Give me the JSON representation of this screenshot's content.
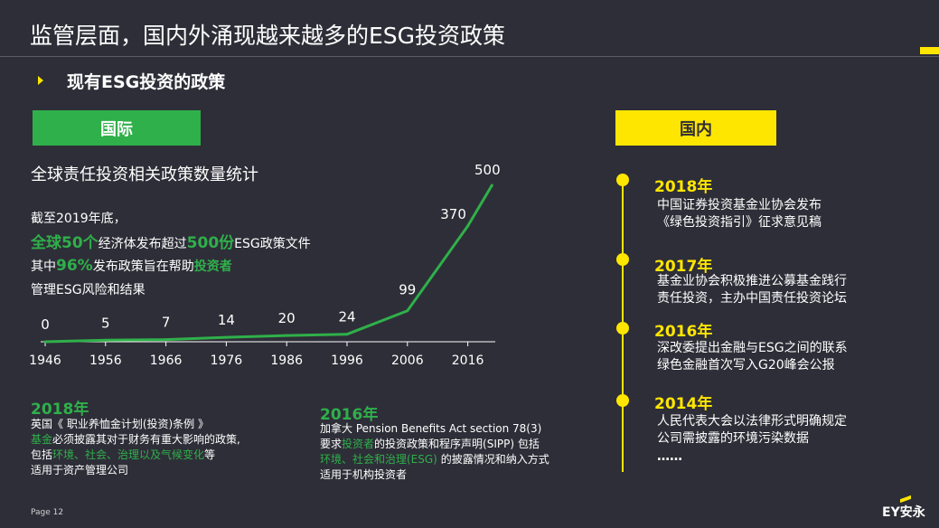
{
  "title": "监管层面，国内外涌现越来越多的ESG投资政策",
  "subtitle": "现有ESG投资的政策",
  "international": {
    "pill": "国际",
    "chart_title": "全球责任投资相关政策数量统计",
    "stats": {
      "l1": "截至2019年底，",
      "l2a": "全球50个",
      "l2b": "经济体发布超过",
      "l2c": "500份",
      "l2d": "ESG政策文件",
      "l3a": "其中",
      "l3b": "96%",
      "l3c": "发布政策旨在帮助",
      "l3d": "投资者",
      "l4": "管理ESG风险和结果"
    }
  },
  "domestic": {
    "pill": "国内",
    "timeline": [
      {
        "year": "2018年",
        "l1": "中国证券投资基金业协会发布",
        "l2": "《绿色投资指引》征求意见稿"
      },
      {
        "year": "2017年",
        "l1": "基金业协会积极推进公募基金践行",
        "l2": "责任投资，主办中国责任投资论坛"
      },
      {
        "year": "2016年",
        "l1": "深改委提出金融与ESG之间的联系",
        "l2": "绿色金融首次写入G20峰会公报"
      },
      {
        "year": "2014年",
        "l1": "人民代表大会以法律形式明确规定",
        "l2": "公司需披露的环境污染数据"
      }
    ],
    "ellipsis": "……"
  },
  "annotations": {
    "uk": {
      "year": "2018年",
      "l1": "英国《 职业养恤金计划(投资)条例 》",
      "l2a": "基金",
      "l2b": "必须披露其对于财务有重大影响的政策,",
      "l3a": "包括",
      "l3b": "环境、社会、治理以及气候变化",
      "l3c": "等",
      "l4": "适用于资产管理公司"
    },
    "ca": {
      "year": "2016年",
      "l1": "加拿大 Pension Benefits Act section 78(3)",
      "l2a": "要求",
      "l2b": "投资者",
      "l2c": "的投资政策和程序声明(SIPP) 包括",
      "l3a": "环境、社会和治理(ESG)",
      "l3b": " 的披露情况和纳入方式",
      "l4": "适用于机构投资者"
    }
  },
  "chart_data": {
    "type": "line",
    "title": "全球责任投资相关政策数量统计",
    "categories": [
      "1946",
      "1956",
      "1966",
      "1976",
      "1986",
      "1996",
      "2006",
      "2016"
    ],
    "x": [
      1946,
      1956,
      1966,
      1976,
      1986,
      1996,
      2006,
      2016,
      2020
    ],
    "values": [
      0,
      5,
      7,
      14,
      20,
      24,
      99,
      370,
      500
    ],
    "labels": [
      "0",
      "5",
      "7",
      "14",
      "20",
      "24",
      "99",
      "370",
      "500"
    ],
    "xlabel": "",
    "ylabel": "",
    "grid": false,
    "colors": {
      "line": "#2fb04a",
      "axis": "#ffffff",
      "text": "#ffffff"
    }
  },
  "footer": {
    "page": "Page 12",
    "logo": "EY安永"
  },
  "colors": {
    "background": "#2e2e38",
    "green": "#2fb04a",
    "yellow": "#ffe600"
  }
}
